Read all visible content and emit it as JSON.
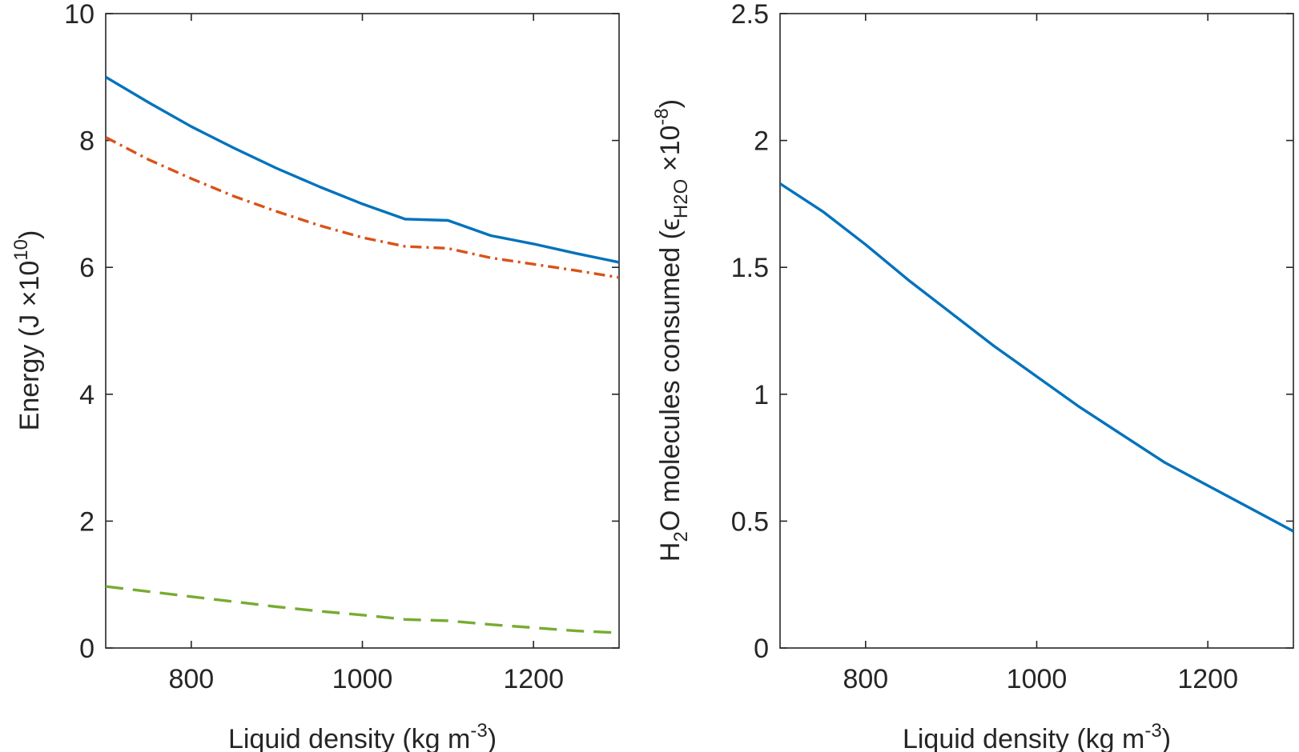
{
  "chart_data": [
    {
      "type": "line",
      "xlabel": {
        "main": "Liquid density (kg m",
        "sup": "-3",
        "tail": ")"
      },
      "ylabel": {
        "main": "Energy (J ×10",
        "sup": "10",
        "tail": ")"
      },
      "xlim": [
        700,
        1300
      ],
      "ylim": [
        0,
        10
      ],
      "xticks": [
        800,
        1000,
        1200
      ],
      "yticks": [
        0,
        2,
        4,
        6,
        8,
        10
      ],
      "ytick_labels": [
        "0",
        "2",
        "4",
        "6",
        "8",
        "10"
      ],
      "grid": false,
      "series": [
        {
          "style": "solid",
          "color": "#0072BD",
          "x": [
            700,
            750,
            800,
            850,
            900,
            950,
            1000,
            1050,
            1100,
            1150,
            1200,
            1250,
            1300
          ],
          "y": [
            9.0,
            8.6,
            8.22,
            7.88,
            7.56,
            7.27,
            7.0,
            6.76,
            6.74,
            6.5,
            6.37,
            6.22,
            6.08
          ]
        },
        {
          "style": "dashdot",
          "color": "#D95319",
          "x": [
            700,
            750,
            800,
            850,
            900,
            950,
            1000,
            1050,
            1100,
            1150,
            1200,
            1250,
            1300
          ],
          "y": [
            8.05,
            7.7,
            7.4,
            7.12,
            6.88,
            6.66,
            6.47,
            6.33,
            6.3,
            6.15,
            6.05,
            5.95,
            5.84
          ]
        },
        {
          "style": "dashed",
          "color": "#77AC30",
          "x": [
            700,
            750,
            800,
            850,
            900,
            950,
            1000,
            1050,
            1100,
            1150,
            1200,
            1250,
            1300
          ],
          "y": [
            0.97,
            0.89,
            0.81,
            0.73,
            0.65,
            0.58,
            0.52,
            0.45,
            0.43,
            0.37,
            0.32,
            0.27,
            0.24
          ]
        }
      ]
    },
    {
      "type": "line",
      "xlabel": {
        "main": "Liquid density (kg m",
        "sup": "-3",
        "tail": ")"
      },
      "ylabel": {
        "main": "H",
        "sub": "2",
        "mid": "O molecules consumed (",
        "eps": "ϵ",
        "eps_sub": "H2O",
        "post": " ×10",
        "sup": "-8",
        "tail": ")"
      },
      "xlim": [
        700,
        1300
      ],
      "ylim": [
        0,
        2.5
      ],
      "xticks": [
        800,
        1000,
        1200
      ],
      "yticks": [
        0,
        0.5,
        1,
        1.5,
        2,
        2.5
      ],
      "ytick_labels": [
        "0",
        "0.5",
        "1",
        "1.5",
        "2",
        "2.5"
      ],
      "grid": false,
      "series": [
        {
          "style": "solid",
          "color": "#0072BD",
          "x": [
            700,
            750,
            800,
            850,
            900,
            950,
            1000,
            1050,
            1100,
            1150,
            1200,
            1250,
            1300
          ],
          "y": [
            1.83,
            1.72,
            1.59,
            1.45,
            1.32,
            1.19,
            1.07,
            0.95,
            0.84,
            0.73,
            0.64,
            0.55,
            0.46
          ]
        }
      ]
    }
  ]
}
